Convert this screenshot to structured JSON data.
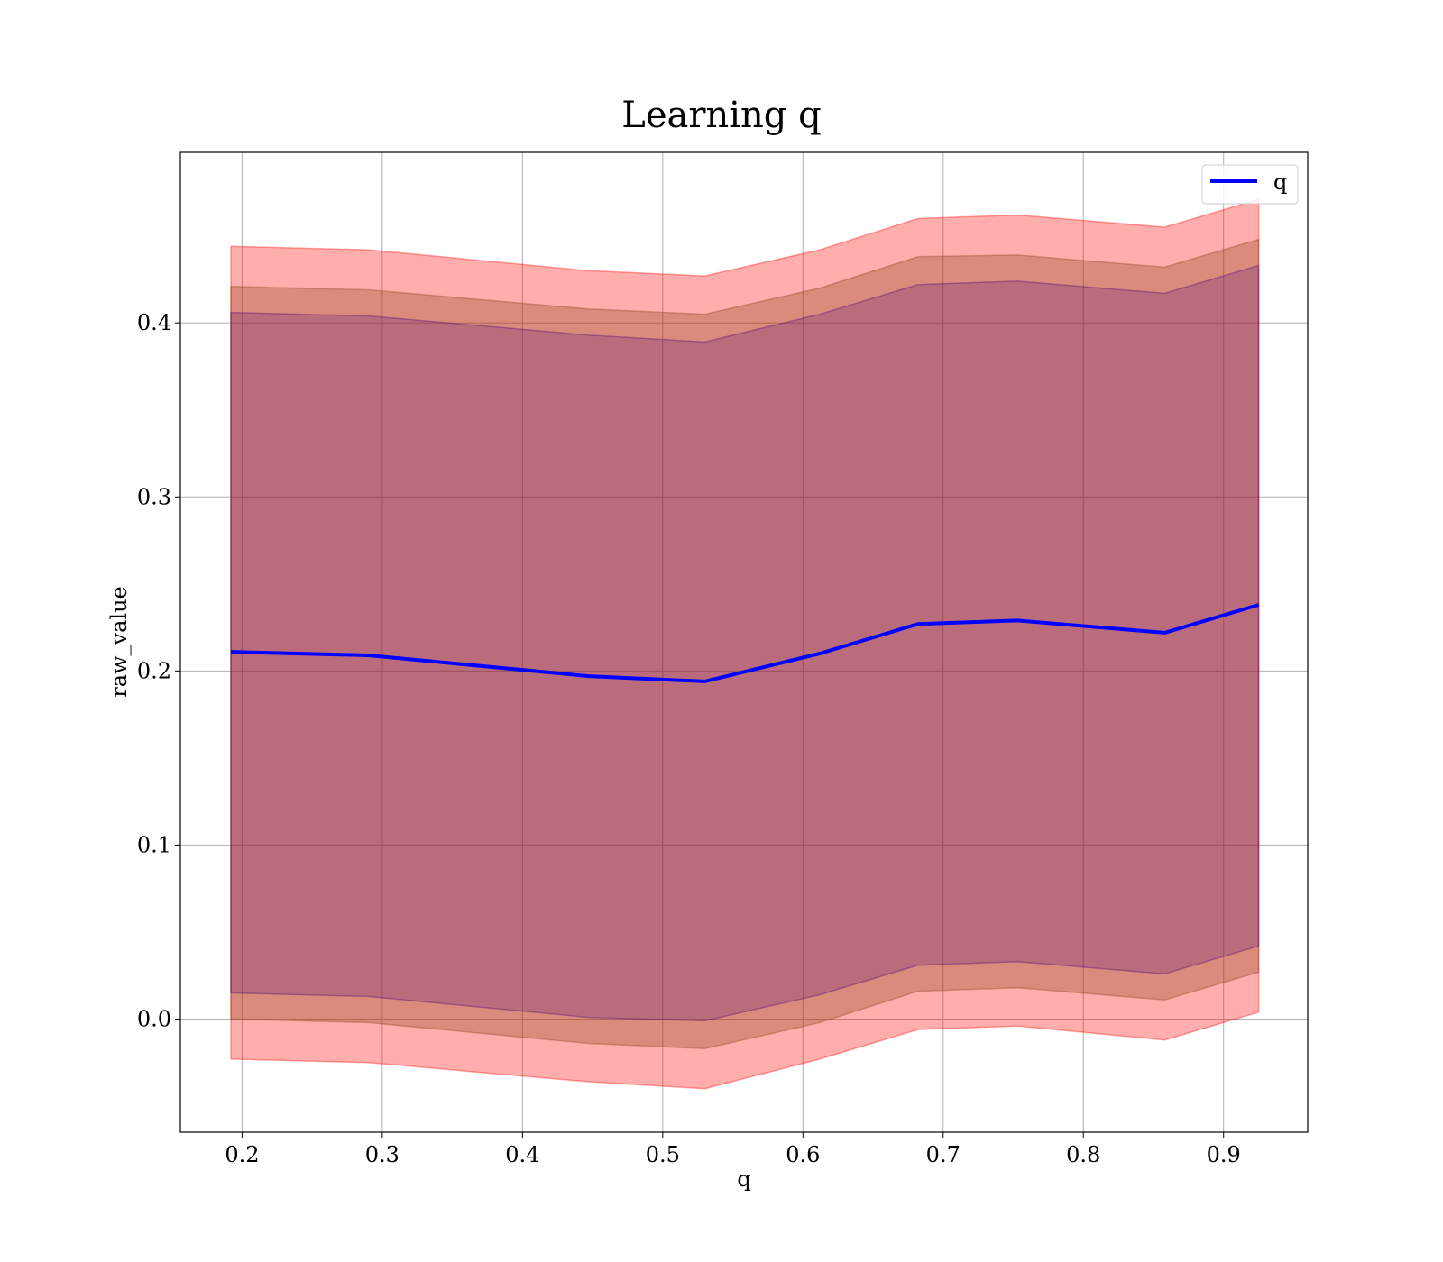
{
  "chart_data": {
    "type": "area",
    "title": "Learning q",
    "xlabel": "q",
    "ylabel": "raw_value",
    "xlim": [
      0.156,
      0.96
    ],
    "ylim": [
      -0.065,
      0.498
    ],
    "x_ticks": [
      0.2,
      0.3,
      0.4,
      0.5,
      0.6,
      0.7,
      0.8,
      0.9
    ],
    "y_ticks": [
      0.0,
      0.1,
      0.2,
      0.3,
      0.4
    ],
    "grid": true,
    "legend_position": "top-right",
    "x": [
      0.192,
      0.29,
      0.447,
      0.53,
      0.612,
      0.682,
      0.753,
      0.858,
      0.925
    ],
    "series": [
      {
        "name": "q",
        "color": "#0000ff",
        "values": [
          0.211,
          0.209,
          0.197,
          0.194,
          0.21,
          0.227,
          0.229,
          0.222,
          0.238
        ]
      }
    ],
    "bands": [
      {
        "color": "#ff0000",
        "opacity": 0.32,
        "lower": [
          -0.023,
          -0.025,
          -0.036,
          -0.04,
          -0.023,
          -0.006,
          -0.004,
          -0.012,
          0.004
        ],
        "upper": [
          0.444,
          0.442,
          0.43,
          0.427,
          0.442,
          0.46,
          0.462,
          0.455,
          0.471
        ]
      },
      {
        "color": "#8b4513",
        "opacity": 0.32,
        "lower": [
          0.0,
          -0.002,
          -0.014,
          -0.017,
          -0.002,
          0.016,
          0.018,
          0.011,
          0.027
        ],
        "upper": [
          0.421,
          0.419,
          0.408,
          0.405,
          0.42,
          0.438,
          0.439,
          0.432,
          0.448
        ]
      },
      {
        "color": "#4b0082",
        "opacity": 0.22,
        "lower": [
          0.015,
          0.013,
          0.001,
          -0.001,
          0.014,
          0.031,
          0.033,
          0.026,
          0.042
        ],
        "upper": [
          0.406,
          0.404,
          0.393,
          0.389,
          0.405,
          0.422,
          0.424,
          0.417,
          0.433
        ]
      }
    ]
  }
}
